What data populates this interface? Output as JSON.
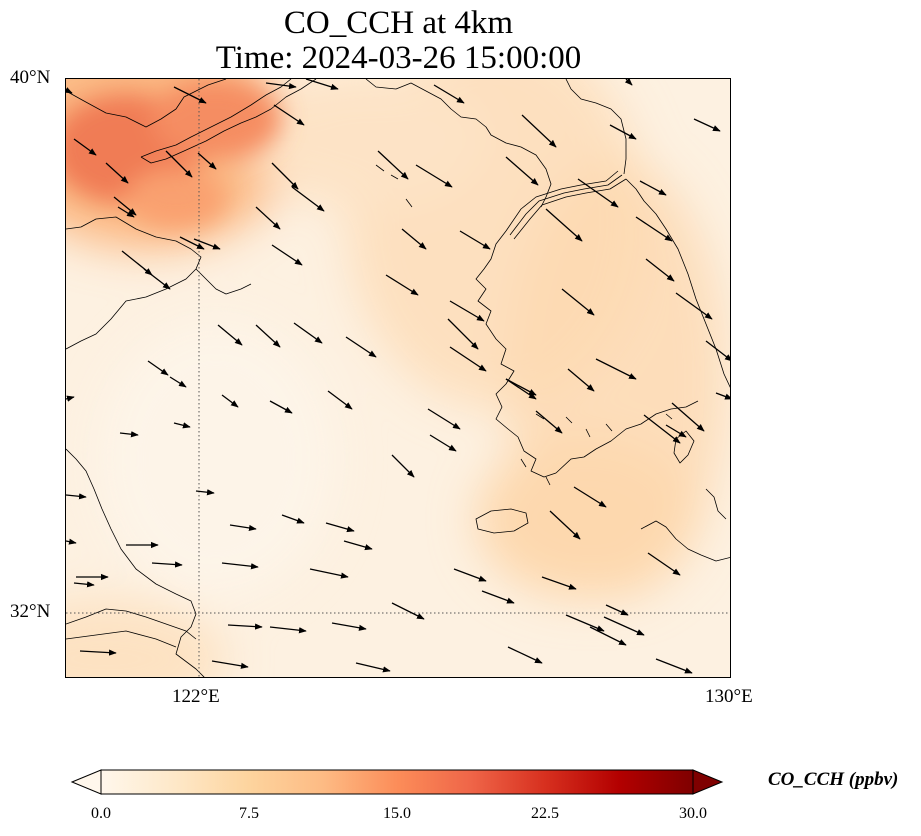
{
  "title": {
    "line1": "CO_CCH at 4km",
    "line2": "Time: 2024-03-26 15:00:00"
  },
  "axes": {
    "lat_labels": [
      "40°N",
      "32°N"
    ],
    "lon_labels": [
      "122°E",
      "130°E"
    ],
    "gridlines": "dotted"
  },
  "colorbar": {
    "label": "CO_CCH (ppbv)",
    "ticks": [
      "0.0",
      "7.5",
      "15.0",
      "22.5",
      "30.0"
    ],
    "range": [
      0,
      30
    ],
    "colormap": "OrRd",
    "extend": "both",
    "colors": [
      "#fff7ec",
      "#fee8c8",
      "#fdd49e",
      "#fdbb84",
      "#fc8d59",
      "#ef6548",
      "#d7301f",
      "#b30000",
      "#7f0000"
    ]
  },
  "colors": {
    "coastline": "#000000",
    "arrow": "#000000",
    "background_field": "#fdf0df"
  }
}
